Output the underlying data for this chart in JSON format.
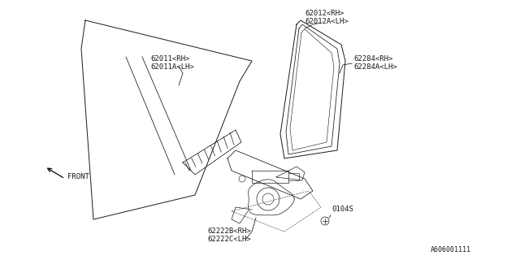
{
  "bg_color": "#ffffff",
  "line_color": "#1a1a1a",
  "text_color": "#1a1a1a",
  "font_size": 6.5,
  "labels": {
    "part1": "62012<RH>\n62012A<LH>",
    "part2": "62284<RH>\n62284A<LH>",
    "part3": "62011<RH>\n62011A<LH>",
    "part4": "62222B<RH>\n62222C<LH>",
    "part5": "0104S",
    "front": "FRONT",
    "diagram_id": "A606001111"
  }
}
